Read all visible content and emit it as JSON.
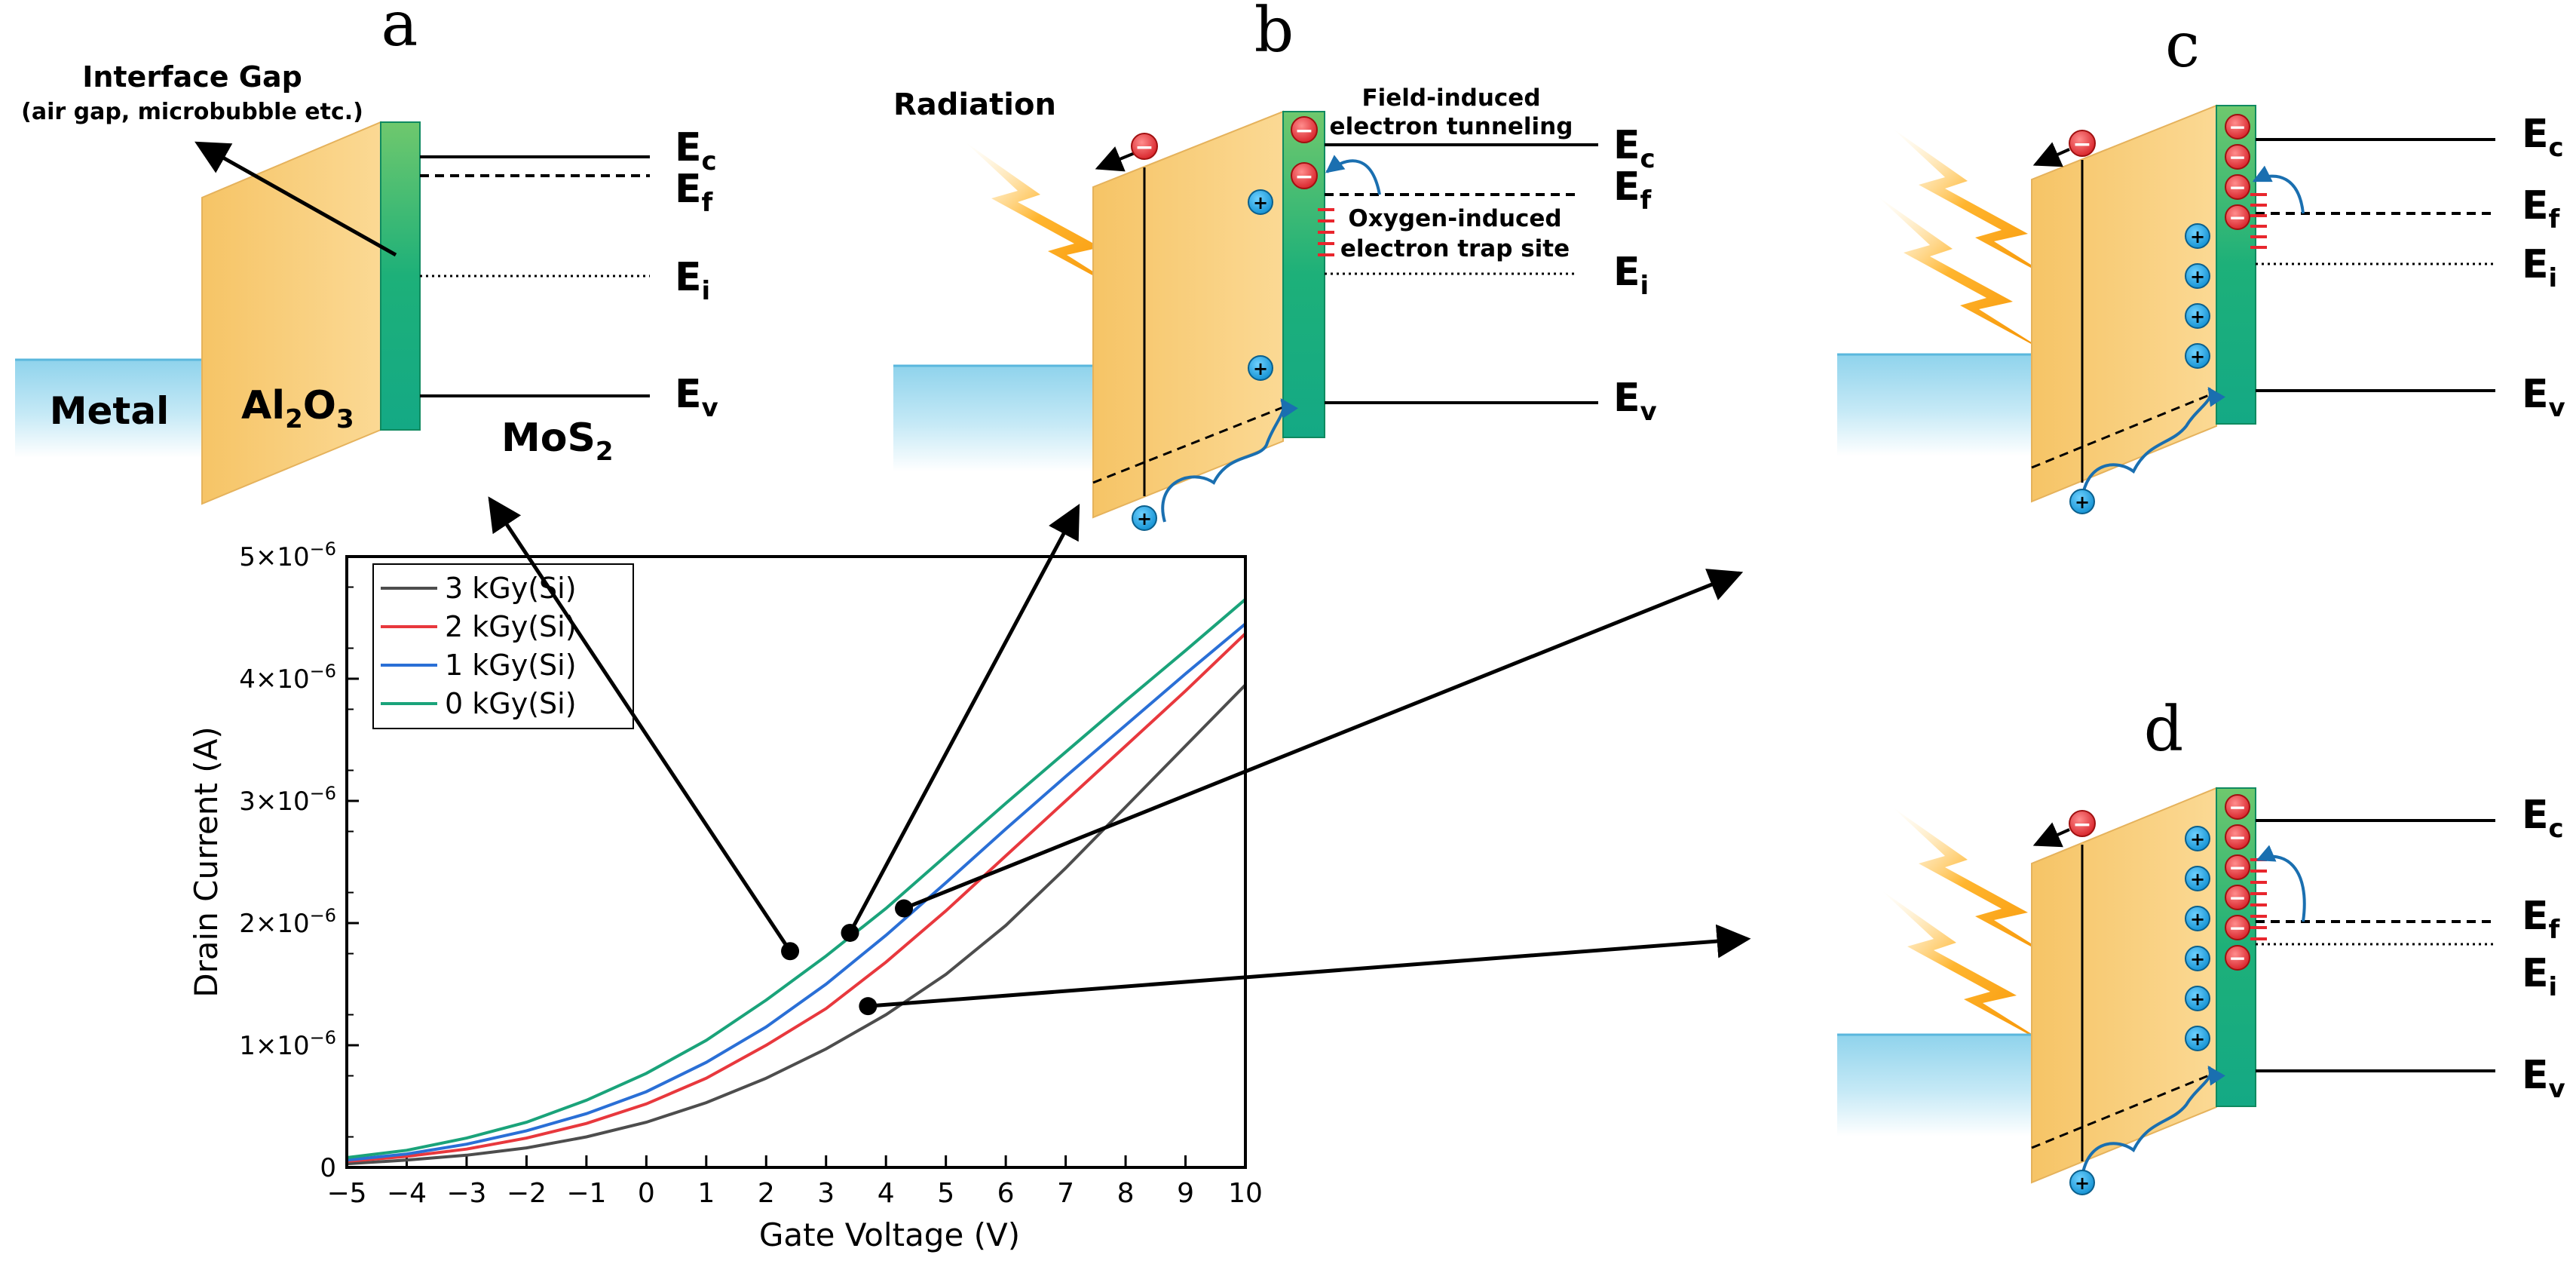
{
  "panels": {
    "a": {
      "letter": "a",
      "interface_title": "Interface Gap",
      "interface_sub": "(air gap, microbubble etc.)",
      "metal_label": "Metal",
      "oxide_main": "Al",
      "oxide_sub1": "2",
      "oxide_mid": "O",
      "oxide_sub2": "3",
      "mos2_main": "MoS",
      "mos2_sub": "2",
      "levels": {
        "ec": "E",
        "ec_sub": "c",
        "ef": "E",
        "ef_sub": "f",
        "ei": "E",
        "ei_sub": "i",
        "ev": "E",
        "ev_sub": "v"
      }
    },
    "b": {
      "letter": "b",
      "radiation_label": "Radiation",
      "tunneling_line1": "Field-induced",
      "tunneling_line2": "electron tunneling",
      "trap_line1": "Oxygen-induced",
      "trap_line2": "electron trap site",
      "levels": {
        "ec": "E",
        "ec_sub": "c",
        "ef": "E",
        "ef_sub": "f",
        "ei": "E",
        "ei_sub": "i",
        "ev": "E",
        "ev_sub": "v"
      }
    },
    "c": {
      "letter": "c",
      "levels": {
        "ec": "E",
        "ec_sub": "c",
        "ef": "E",
        "ef_sub": "f",
        "ei": "E",
        "ei_sub": "i",
        "ev": "E",
        "ev_sub": "v"
      }
    },
    "d": {
      "letter": "d",
      "levels": {
        "ec": "E",
        "ec_sub": "c",
        "ef": "E",
        "ef_sub": "f",
        "ei": "E",
        "ei_sub": "i",
        "ev": "E",
        "ev_sub": "v"
      }
    }
  },
  "charges": {
    "minus": "−",
    "plus": "+"
  },
  "chart_data": {
    "type": "line",
    "xlabel": "Gate Voltage (V)",
    "ylabel": "Drain Current (A)",
    "xlim": [
      -5,
      10
    ],
    "ylim": [
      0,
      5e-06
    ],
    "xticks": [
      "−5",
      "−4",
      "−3",
      "−2",
      "−1",
      "0",
      "1",
      "2",
      "3",
      "4",
      "5",
      "6",
      "7",
      "8",
      "9",
      "10"
    ],
    "yticks": [
      {
        "value": 0,
        "base": "0",
        "exp": ""
      },
      {
        "value": 1e-06,
        "base": "1×10",
        "exp": "−6"
      },
      {
        "value": 2e-06,
        "base": "2×10",
        "exp": "−6"
      },
      {
        "value": 3e-06,
        "base": "3×10",
        "exp": "−6"
      },
      {
        "value": 4e-06,
        "base": "4×10",
        "exp": "−6"
      },
      {
        "value": 5e-06,
        "base": "5×10",
        "exp": "−6"
      }
    ],
    "series": [
      {
        "name": "3 kGy(Si)",
        "color": "#4d4d4d",
        "x": [
          -5,
          -4,
          -3,
          -2,
          -1,
          0,
          1,
          2,
          3,
          4,
          5,
          6,
          7,
          8,
          9,
          10
        ],
        "y": [
          3e-08,
          6e-08,
          1e-07,
          1.6e-07,
          2.5e-07,
          3.7e-07,
          5.3e-07,
          7.3e-07,
          9.7e-07,
          1.25e-06,
          1.58e-06,
          1.98e-06,
          2.45e-06,
          2.95e-06,
          3.45e-06,
          3.95e-06
        ]
      },
      {
        "name": "2 kGy(Si)",
        "color": "#e8383d",
        "x": [
          -5,
          -4,
          -3,
          -2,
          -1,
          0,
          1,
          2,
          3,
          4,
          5,
          6,
          7,
          8,
          9,
          10
        ],
        "y": [
          5e-08,
          9e-08,
          1.5e-07,
          2.4e-07,
          3.6e-07,
          5.2e-07,
          7.3e-07,
          1e-06,
          1.3e-06,
          1.68e-06,
          2.1e-06,
          2.55e-06,
          3e-06,
          3.45e-06,
          3.9e-06,
          4.37e-06
        ]
      },
      {
        "name": "1 kGy(Si)",
        "color": "#2a6fd6",
        "x": [
          -5,
          -4,
          -3,
          -2,
          -1,
          0,
          1,
          2,
          3,
          4,
          5,
          6,
          7,
          8,
          9,
          10
        ],
        "y": [
          6e-08,
          1.1e-07,
          1.9e-07,
          3e-07,
          4.4e-07,
          6.2e-07,
          8.6e-07,
          1.15e-06,
          1.5e-06,
          1.9e-06,
          2.33e-06,
          2.77e-06,
          3.2e-06,
          3.62e-06,
          4.04e-06,
          4.45e-06
        ]
      },
      {
        "name": "0 kGy(Si)",
        "color": "#1aa37a",
        "x": [
          -5,
          -4,
          -3,
          -2,
          -1,
          0,
          1,
          2,
          3,
          4,
          5,
          6,
          7,
          8,
          9,
          10
        ],
        "y": [
          8e-08,
          1.4e-07,
          2.4e-07,
          3.7e-07,
          5.5e-07,
          7.7e-07,
          1.04e-06,
          1.37e-06,
          1.73e-06,
          2.12e-06,
          2.55e-06,
          2.98e-06,
          3.4e-06,
          3.82e-06,
          4.23e-06,
          4.65e-06
        ]
      }
    ],
    "markers": [
      {
        "x": 2.4,
        "y": 1.77e-06,
        "points_to": "a"
      },
      {
        "x": 3.4,
        "y": 1.92e-06,
        "points_to": "b"
      },
      {
        "x": 4.3,
        "y": 2.12e-06,
        "points_to": "c"
      },
      {
        "x": 3.7,
        "y": 1.32e-06,
        "points_to": "d"
      }
    ],
    "legend_position": "top-left"
  }
}
